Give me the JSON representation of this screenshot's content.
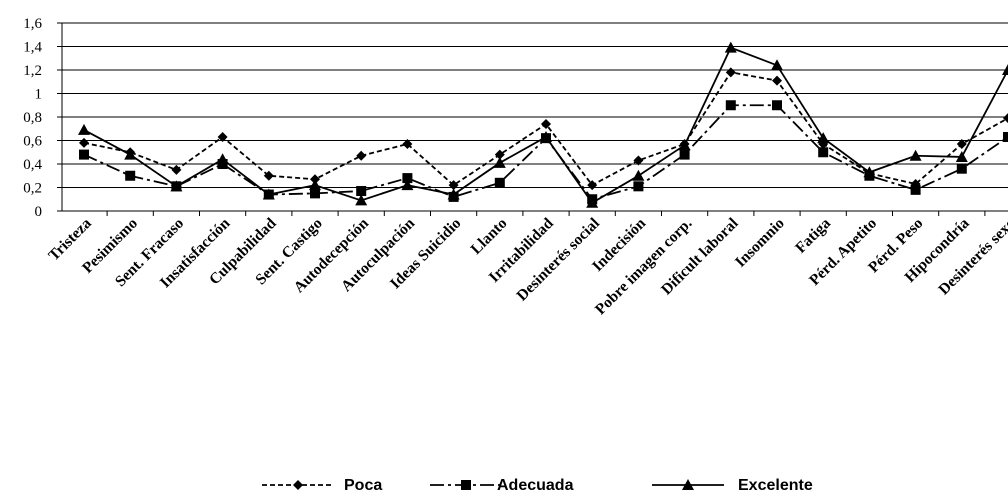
{
  "chart_data": {
    "type": "line",
    "title": "",
    "xlabel": "",
    "ylabel": "",
    "ylim": [
      0,
      1.6
    ],
    "y_ticks": [
      "0",
      "0,2",
      "0,4",
      "0,6",
      "0,8",
      "1",
      "1,2",
      "1,4",
      "1,6"
    ],
    "grid": "horizontal",
    "legend_position": "bottom",
    "categories": [
      "Tristeza",
      "Pesimismo",
      "Sent. Fracaso",
      "Insatisfacción",
      "Culpabilidad",
      "Sent. Castigo",
      "Autodecepción",
      "Autoculpación",
      "Ideas Suicidio",
      "Llanto",
      "Irritabilidad",
      "Desinterés social",
      "Indecisión",
      "Pobre imagen corp.",
      "Dificult laboral",
      "Insomnio",
      "Fatiga",
      "Pérd. Apetito",
      "Pérd. Peso",
      "Hipocondría",
      "Desinterés sexo"
    ],
    "series": [
      {
        "name": "Poca",
        "marker": "diamond",
        "dash": "5,3",
        "color": "#000000",
        "values": [
          0.58,
          0.5,
          0.35,
          0.63,
          0.3,
          0.27,
          0.47,
          0.57,
          0.22,
          0.48,
          0.74,
          0.22,
          0.43,
          0.57,
          1.18,
          1.11,
          0.57,
          0.32,
          0.23,
          0.57,
          0.79
        ]
      },
      {
        "name": "Adecuada",
        "marker": "square",
        "dash": "14,4,3,4",
        "color": "#000000",
        "values": [
          0.48,
          0.3,
          0.21,
          0.4,
          0.14,
          0.15,
          0.17,
          0.28,
          0.12,
          0.24,
          0.62,
          0.1,
          0.21,
          0.48,
          0.9,
          0.9,
          0.5,
          0.3,
          0.18,
          0.36,
          0.63
        ]
      },
      {
        "name": "Excelente",
        "marker": "triangle",
        "dash": "",
        "color": "#000000",
        "values": [
          0.69,
          0.48,
          0.21,
          0.44,
          0.14,
          0.22,
          0.09,
          0.22,
          0.14,
          0.41,
          0.63,
          0.07,
          0.3,
          0.56,
          1.39,
          1.24,
          0.62,
          0.33,
          0.47,
          0.46,
          1.2
        ]
      }
    ]
  }
}
